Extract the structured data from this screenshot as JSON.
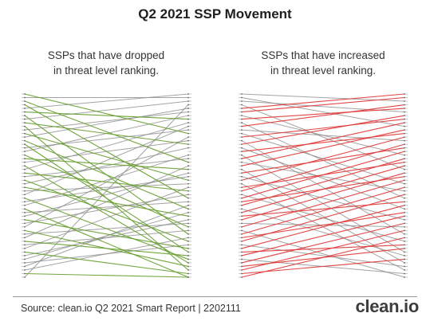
{
  "title": "Q2 2021 SSP Movement",
  "footer": {
    "source": "Source: clean.io Q2 2021 Smart Report | 2202111",
    "logo_text": "clean.io"
  },
  "colors": {
    "dropped": "#6aa033",
    "increased": "#e23b3b",
    "neutral": "#8c8c8c"
  },
  "chart_data": [
    {
      "type": "slope",
      "subtitle_line1": "SSPs that have dropped",
      "subtitle_line2": "in threat level ranking.",
      "highlight": "dropped",
      "rank_count": 52,
      "pairs": [
        [
          1,
          12
        ],
        [
          2,
          2
        ],
        [
          3,
          20
        ],
        [
          4,
          30
        ],
        [
          5,
          1
        ],
        [
          6,
          8
        ],
        [
          7,
          40
        ],
        [
          8,
          3
        ],
        [
          9,
          15
        ],
        [
          10,
          50
        ],
        [
          11,
          6
        ],
        [
          12,
          25
        ],
        [
          13,
          5
        ],
        [
          14,
          33
        ],
        [
          15,
          45
        ],
        [
          16,
          11
        ],
        [
          17,
          7
        ],
        [
          18,
          38
        ],
        [
          19,
          22
        ],
        [
          20,
          14
        ],
        [
          21,
          48
        ],
        [
          22,
          9
        ],
        [
          23,
          28
        ],
        [
          24,
          19
        ],
        [
          25,
          42
        ],
        [
          26,
          16
        ],
        [
          27,
          35
        ],
        [
          28,
          26
        ],
        [
          29,
          10
        ],
        [
          30,
          47
        ],
        [
          31,
          24
        ],
        [
          32,
          18
        ],
        [
          33,
          52
        ],
        [
          34,
          31
        ],
        [
          35,
          23
        ],
        [
          36,
          44
        ],
        [
          37,
          29
        ],
        [
          38,
          13
        ],
        [
          39,
          49
        ],
        [
          40,
          37
        ],
        [
          41,
          21
        ],
        [
          42,
          46
        ],
        [
          43,
          39
        ],
        [
          44,
          27
        ],
        [
          45,
          51
        ],
        [
          46,
          36
        ],
        [
          47,
          34
        ],
        [
          48,
          43
        ],
        [
          49,
          32
        ],
        [
          50,
          41
        ],
        [
          51,
          52
        ],
        [
          52,
          4
        ]
      ]
    },
    {
      "type": "slope",
      "subtitle_line1": "SSPs that have increased",
      "subtitle_line2": "in threat level ranking.",
      "highlight": "increased",
      "rank_count": 52,
      "pairs": [
        [
          1,
          3
        ],
        [
          2,
          10
        ],
        [
          3,
          6
        ],
        [
          4,
          22
        ],
        [
          5,
          1
        ],
        [
          6,
          2
        ],
        [
          7,
          18
        ],
        [
          8,
          5
        ],
        [
          9,
          30
        ],
        [
          10,
          4
        ],
        [
          11,
          14
        ],
        [
          12,
          26
        ],
        [
          13,
          8
        ],
        [
          14,
          40
        ],
        [
          15,
          7
        ],
        [
          16,
          33
        ],
        [
          17,
          12
        ],
        [
          18,
          45
        ],
        [
          19,
          9
        ],
        [
          20,
          28
        ],
        [
          21,
          11
        ],
        [
          22,
          48
        ],
        [
          23,
          16
        ],
        [
          24,
          36
        ],
        [
          25,
          13
        ],
        [
          26,
          50
        ],
        [
          27,
          20
        ],
        [
          28,
          15
        ],
        [
          29,
          42
        ],
        [
          30,
          17
        ],
        [
          31,
          24
        ],
        [
          32,
          19
        ],
        [
          33,
          46
        ],
        [
          34,
          21
        ],
        [
          35,
          31
        ],
        [
          36,
          23
        ],
        [
          37,
          38
        ],
        [
          38,
          25
        ],
        [
          39,
          52
        ],
        [
          40,
          27
        ],
        [
          41,
          34
        ],
        [
          42,
          29
        ],
        [
          43,
          49
        ],
        [
          44,
          32
        ],
        [
          45,
          43
        ],
        [
          46,
          35
        ],
        [
          47,
          51
        ],
        [
          48,
          37
        ],
        [
          49,
          44
        ],
        [
          50,
          39
        ],
        [
          51,
          47
        ],
        [
          52,
          41
        ]
      ]
    }
  ]
}
